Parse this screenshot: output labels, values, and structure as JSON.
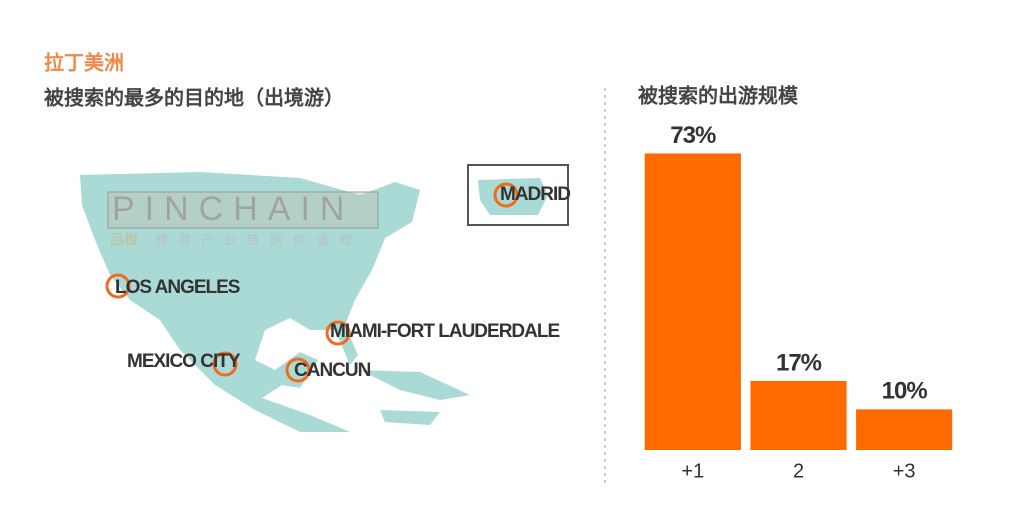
{
  "header": {
    "region": "拉丁美洲",
    "title": "被搜索的最多的目的地（出境游）"
  },
  "map": {
    "cities": [
      "LOS ANGELES",
      "MEXICO CITY",
      "CANCUN",
      "MIAMI-FORT LAUDERDALE",
      "MADRID"
    ],
    "watermark": {
      "brand": "PINCHAIN",
      "logo": "品橙",
      "tagline": "旅游产业链的价值观"
    }
  },
  "chart_data": {
    "type": "bar",
    "title": "被搜索的出游规模",
    "categories": [
      "+1",
      "2",
      "+3"
    ],
    "values": [
      73,
      17,
      10
    ],
    "value_labels": [
      "73%",
      "17%",
      "10%"
    ],
    "color": "#ff6a00",
    "ylim": [
      0,
      80
    ]
  }
}
